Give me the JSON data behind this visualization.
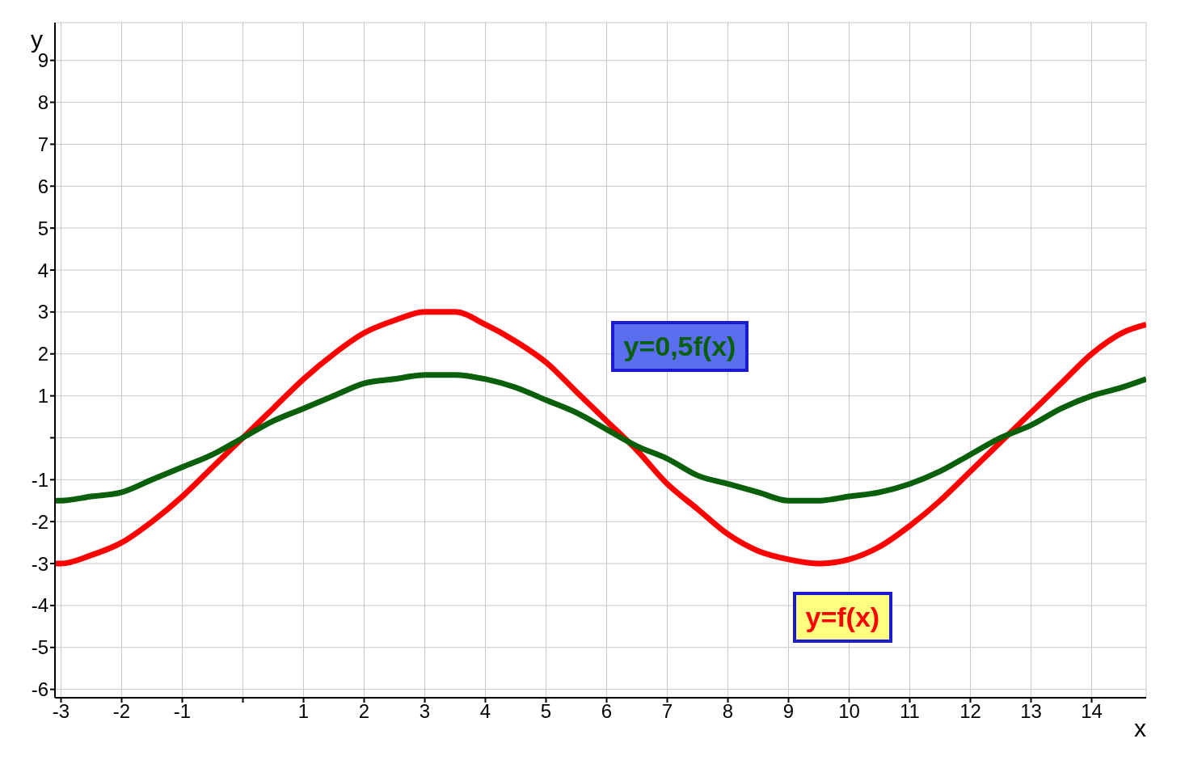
{
  "chart_data": {
    "type": "line",
    "xlabel": "x",
    "ylabel": "y",
    "x": [
      -3.1,
      -3,
      -2.5,
      -2,
      -1.5,
      -1,
      -0.5,
      0,
      0.5,
      1,
      1.5,
      2,
      2.5,
      3,
      3.5,
      4,
      4.5,
      5,
      5.5,
      6,
      6.5,
      7,
      7.5,
      8,
      8.5,
      9,
      9.5,
      10,
      10.5,
      11,
      11.5,
      12,
      12.5,
      13,
      13.5,
      14,
      14.5,
      14.9
    ],
    "series": [
      {
        "name": "y=f(x)",
        "color": "#ff0000",
        "values": [
          -3.0,
          -3.0,
          -2.8,
          -2.5,
          -2.0,
          -1.4,
          -0.7,
          0,
          0.7,
          1.4,
          2.0,
          2.5,
          2.8,
          3.0,
          3.0,
          2.7,
          2.3,
          1.8,
          1.1,
          0.4,
          -0.3,
          -1.1,
          -1.7,
          -2.3,
          -2.7,
          -2.9,
          -3.0,
          -2.9,
          -2.6,
          -2.1,
          -1.5,
          -0.8,
          -0.1,
          0.6,
          1.3,
          2.0,
          2.5,
          2.7
        ]
      },
      {
        "name": "y=0,5f(x)",
        "color": "#0a5f0a",
        "values": [
          -1.5,
          -1.5,
          -1.4,
          -1.3,
          -1.0,
          -0.7,
          -0.4,
          0,
          0.4,
          0.7,
          1.0,
          1.3,
          1.4,
          1.5,
          1.5,
          1.4,
          1.2,
          0.9,
          0.6,
          0.2,
          -0.2,
          -0.5,
          -0.9,
          -1.1,
          -1.3,
          -1.5,
          -1.5,
          -1.4,
          -1.3,
          -1.1,
          -0.8,
          -0.4,
          0,
          0.3,
          0.7,
          1.0,
          1.2,
          1.4
        ]
      }
    ],
    "xlim": [
      -3.1,
      14.9
    ],
    "ylim": [
      -6.2,
      9.9
    ],
    "xticks": [
      -3,
      -2,
      -1,
      {
        "value": 0,
        "label": null
      },
      1,
      2,
      3,
      4,
      5,
      6,
      7,
      8,
      9,
      10,
      11,
      12,
      13,
      14
    ],
    "yticks": [
      -6,
      -5,
      -4,
      -3,
      -2,
      -1,
      {
        "value": 0,
        "label": null
      },
      1,
      2,
      3,
      4,
      5,
      6,
      7,
      8,
      9
    ],
    "grid": true,
    "marker": "none",
    "line_style": "solid"
  }
}
